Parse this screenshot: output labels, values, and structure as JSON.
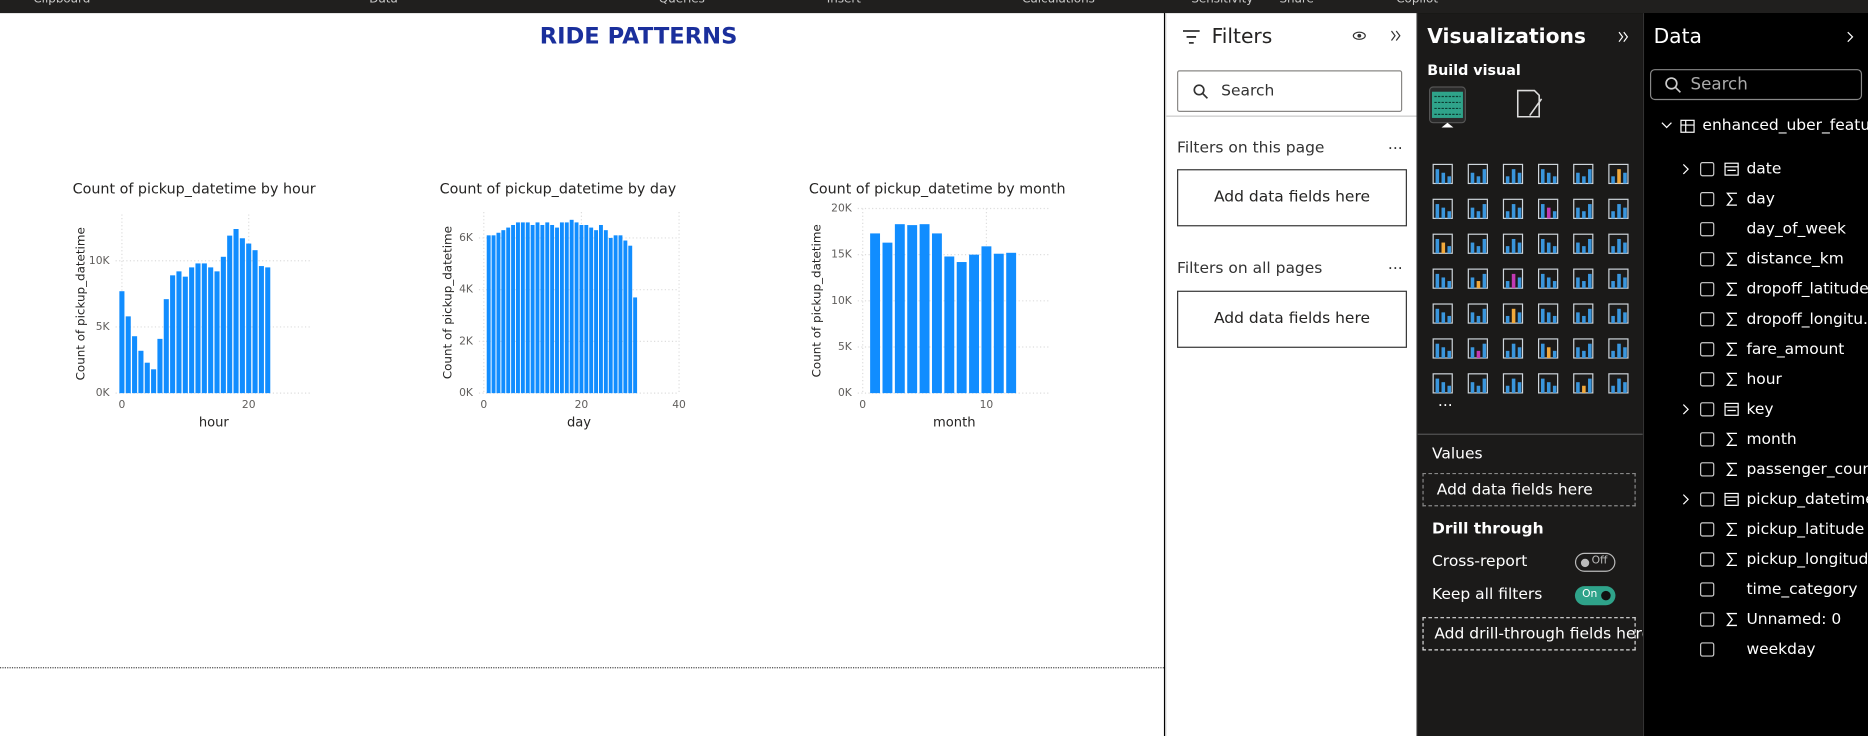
{
  "ribbon": [
    "Clipboard",
    "Data",
    "Queries",
    "Insert",
    "Calculations",
    "Sensitivity",
    "Share",
    "Copilot"
  ],
  "report": {
    "title": "RIDE PATTERNS"
  },
  "chart_data": [
    {
      "type": "bar",
      "title": "Count of pickup_datetime by hour",
      "x_label": "hour",
      "y_label": "Count of pickup_datetime",
      "x": [
        0,
        1,
        2,
        3,
        4,
        5,
        6,
        7,
        8,
        9,
        10,
        11,
        12,
        13,
        14,
        15,
        16,
        17,
        18,
        19,
        20,
        21,
        22,
        23
      ],
      "values": [
        7700,
        5800,
        4300,
        3200,
        2300,
        1800,
        4100,
        7100,
        8900,
        9200,
        8800,
        9500,
        9800,
        9800,
        9500,
        9200,
        10300,
        11900,
        12400,
        11700,
        11300,
        10800,
        9600,
        9500
      ],
      "color": "#118dff",
      "xlim": [
        -1,
        30
      ],
      "xticks": [
        0,
        20
      ],
      "ylim": [
        0,
        13500
      ],
      "yticks": [
        {
          "value": 0,
          "label": "0K"
        },
        {
          "value": 5000,
          "label": "5K"
        },
        {
          "value": 10000,
          "label": "10K"
        }
      ],
      "grid": true
    },
    {
      "type": "bar",
      "title": "Count of pickup_datetime by day",
      "x_label": "day",
      "y_label": "Count of pickup_datetime",
      "x": [
        1,
        2,
        3,
        4,
        5,
        6,
        7,
        8,
        9,
        10,
        11,
        12,
        13,
        14,
        15,
        16,
        17,
        18,
        19,
        20,
        21,
        22,
        23,
        24,
        25,
        26,
        27,
        28,
        29,
        30,
        31
      ],
      "values": [
        6100,
        6100,
        6200,
        6300,
        6400,
        6500,
        6600,
        6600,
        6600,
        6500,
        6600,
        6500,
        6600,
        6500,
        6400,
        6600,
        6600,
        6700,
        6600,
        6500,
        6500,
        6400,
        6300,
        6500,
        6300,
        6000,
        6100,
        6100,
        5900,
        5700,
        3700
      ],
      "color": "#118dff",
      "xlim": [
        -1,
        40
      ],
      "xticks": [
        0,
        20,
        40
      ],
      "ylim": [
        0,
        7000
      ],
      "yticks": [
        {
          "value": 0,
          "label": "0K"
        },
        {
          "value": 2000,
          "label": "2K"
        },
        {
          "value": 4000,
          "label": "4K"
        },
        {
          "value": 6000,
          "label": "6K"
        }
      ],
      "grid": true
    },
    {
      "type": "bar",
      "title": "Count of pickup_datetime by month",
      "x_label": "month",
      "y_label": "Count of pickup_datetime",
      "x": [
        1,
        2,
        3,
        4,
        5,
        6,
        7,
        8,
        9,
        10,
        11,
        12
      ],
      "values": [
        17300,
        16300,
        18300,
        18200,
        18300,
        17300,
        14800,
        14200,
        15000,
        15900,
        15100,
        15200
      ],
      "color": "#118dff",
      "xlim": [
        -0.4,
        15.2
      ],
      "xticks": [
        0,
        10
      ],
      "ylim": [
        0,
        20000
      ],
      "yticks": [
        {
          "value": 0,
          "label": "0K"
        },
        {
          "value": 5000,
          "label": "5K"
        },
        {
          "value": 10000,
          "label": "10K"
        },
        {
          "value": 15000,
          "label": "15K"
        },
        {
          "value": 20000,
          "label": "20K"
        }
      ],
      "grid": true
    }
  ],
  "filters": {
    "title": "Filters",
    "search": "Search",
    "page_section": "Filters on this page",
    "page_more": "...",
    "page_drop": "Add data fields here",
    "all_section": "Filters on all pages",
    "all_more": "...",
    "all_drop": "Add data fields here"
  },
  "visualizations": {
    "title": "Visualizations",
    "build": "Build visual",
    "more": "...",
    "values_label": "Values",
    "values_drop": "Add data fields here",
    "drill_title": "Drill through",
    "cross_report": "Cross-report",
    "cross_state": "Off",
    "keep_filters": "Keep all filters",
    "keep_state": "On",
    "drill_drop": "Add drill-through fields here"
  },
  "data_pane": {
    "title": "Data",
    "search": "Search",
    "table": "enhanced_uber_featur...",
    "fields": [
      {
        "name": "date",
        "icon": "date"
      },
      {
        "name": "day",
        "icon": "sum"
      },
      {
        "name": "day_of_week"
      },
      {
        "name": "distance_km",
        "icon": "sum"
      },
      {
        "name": "dropoff_latitude",
        "icon": "sum"
      },
      {
        "name": "dropoff_longitu...",
        "icon": "sum"
      },
      {
        "name": "fare_amount",
        "icon": "sum"
      },
      {
        "name": "hour",
        "icon": "sum"
      },
      {
        "name": "key",
        "icon": "date"
      },
      {
        "name": "month",
        "icon": "sum"
      },
      {
        "name": "passenger_count",
        "icon": "sum"
      },
      {
        "name": "pickup_datetime",
        "icon": "date"
      },
      {
        "name": "pickup_latitude",
        "icon": "sum"
      },
      {
        "name": "pickup_longitude",
        "icon": "sum"
      },
      {
        "name": "time_category"
      },
      {
        "name": "Unnamed: 0",
        "icon": "sum"
      },
      {
        "name": "weekday"
      }
    ]
  }
}
